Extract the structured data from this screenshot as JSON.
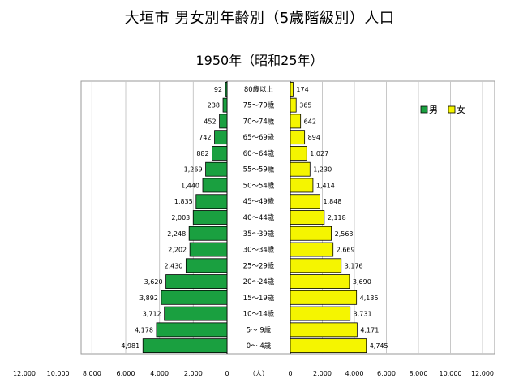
{
  "title": "大垣市 男女別年齢別（5歳階級別）人口",
  "subtitle": "1950年（昭和25年）",
  "chart_data": {
    "type": "bar",
    "orientation": "horizontal-pyramid",
    "title": "大垣市 男女別年齢別（5歳階級別）人口",
    "subtitle": "1950年（昭和25年）",
    "unit_label": "（人）",
    "categories": [
      "0～ 4歳",
      "5～ 9歳",
      "10～14歳",
      "15～19歳",
      "20～24歳",
      "25～29歳",
      "30～34歳",
      "35～39歳",
      "40～44歳",
      "45～49歳",
      "50～54歳",
      "55～59歳",
      "60～64歳",
      "65～69歳",
      "70～74歳",
      "75～79歳",
      "80歳以上"
    ],
    "series": [
      {
        "name": "男",
        "color": "#1aa040",
        "side": "left",
        "values": [
          4981,
          4178,
          3712,
          3892,
          3620,
          2430,
          2202,
          2248,
          2003,
          1835,
          1440,
          1269,
          882,
          742,
          452,
          238,
          92
        ],
        "labels": [
          "4,981",
          "4,178",
          "3,712",
          "3,892",
          "3,620",
          "2,430",
          "2,202",
          "2,248",
          "2,003",
          "1,835",
          "1,440",
          "1,269",
          "882",
          "742",
          "452",
          "238",
          "92"
        ]
      },
      {
        "name": "女",
        "color": "#f5f500",
        "side": "right",
        "values": [
          4745,
          4171,
          3731,
          4135,
          3690,
          3176,
          2669,
          2563,
          2118,
          1848,
          1414,
          1230,
          1027,
          894,
          642,
          365,
          174
        ],
        "labels": [
          "4,745",
          "4,171",
          "3,731",
          "4,135",
          "3,690",
          "3,176",
          "2,669",
          "2,563",
          "2,118",
          "1,848",
          "1,414",
          "1,230",
          "1,027",
          "894",
          "642",
          "365",
          "174"
        ]
      }
    ],
    "xlim": [
      0,
      12000
    ],
    "xticks": [
      12000,
      10000,
      8000,
      6000,
      4000,
      2000,
      0
    ],
    "xtick_labels_left": [
      "12,000",
      "10,000",
      "8,000",
      "6,000",
      "4,000",
      "2,000",
      "0"
    ],
    "xtick_labels_right": [
      "0",
      "2,000",
      "4,000",
      "6,000",
      "8,000",
      "10,000",
      "12,000"
    ],
    "grid": true,
    "legend": "top-right"
  }
}
